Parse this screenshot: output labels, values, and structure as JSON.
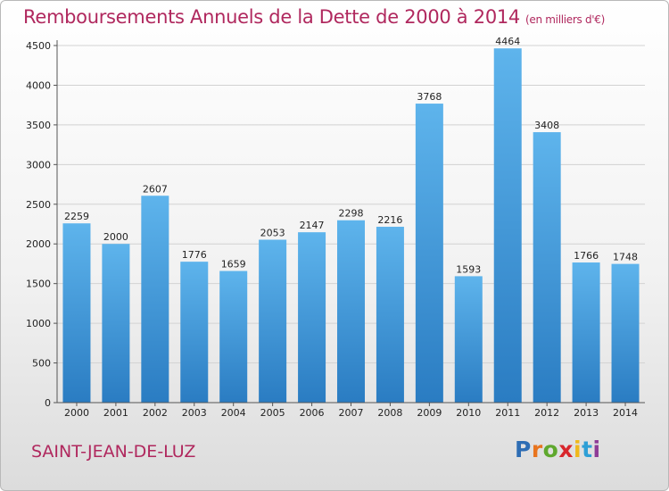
{
  "chart_data": {
    "type": "bar",
    "title": "Remboursements Annuels de la Dette de 2000 à 2014",
    "unit": "(en milliers d'€)",
    "categories": [
      "2000",
      "2001",
      "2002",
      "2003",
      "2004",
      "2005",
      "2006",
      "2007",
      "2008",
      "2009",
      "2010",
      "2011",
      "2012",
      "2013",
      "2014"
    ],
    "values": [
      2259,
      2000,
      2607,
      1776,
      1659,
      2053,
      2147,
      2298,
      2216,
      3768,
      1593,
      4464,
      3408,
      1766,
      1748
    ],
    "yticks": [
      0,
      500,
      1000,
      1500,
      2000,
      2500,
      3000,
      3500,
      4000,
      4500
    ],
    "ylim": [
      0,
      4500
    ],
    "xlabel": "",
    "ylabel": "",
    "grid": true,
    "bar_color": "#3a8fd6"
  },
  "footer": {
    "city": "SAINT-JEAN-DE-LUZ",
    "logo_letters": [
      "P",
      "r",
      "o",
      "x",
      "i",
      "t",
      "i"
    ],
    "logo_colors": [
      "#2e6db4",
      "#e8741e",
      "#5fa82e",
      "#d8262c",
      "#f0b81b",
      "#2e9fd6",
      "#8e3c96"
    ]
  }
}
